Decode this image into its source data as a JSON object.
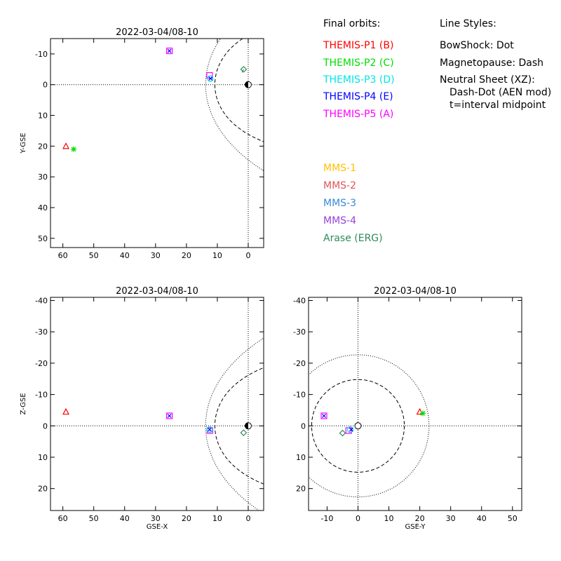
{
  "legend": {
    "final_orbits_header": "Final orbits:",
    "line_styles_header": "Line Styles:",
    "missions": [
      {
        "label": "THEMIS-P1 (B)",
        "color": "#ff0000"
      },
      {
        "label": "THEMIS-P2 (C)",
        "color": "#00dd00"
      },
      {
        "label": "THEMIS-P3 (D)",
        "color": "#00e5e5"
      },
      {
        "label": "THEMIS-P4 (E)",
        "color": "#0000ff"
      },
      {
        "label": "THEMIS-P5 (A)",
        "color": "#ff00ff"
      },
      {
        "label": "MMS-1",
        "color": "#ffc000"
      },
      {
        "label": "MMS-2",
        "color": "#e05555"
      },
      {
        "label": "MMS-3",
        "color": "#3a8ad8"
      },
      {
        "label": "MMS-4",
        "color": "#9a40e0"
      },
      {
        "label": "Arase (ERG)",
        "color": "#2e8b57"
      }
    ],
    "styles": [
      "BowShock: Dot",
      "Magnetopause: Dash",
      "Neutral Sheet (XZ):",
      "Dash-Dot (AEN mod)",
      "t=interval midpoint"
    ]
  },
  "chart_data": [
    {
      "id": "xy",
      "type": "scatter",
      "title": "2022-03-04/08-10",
      "xlabel": "",
      "ylabel": "Y-GSE",
      "xlim": [
        64,
        -5
      ],
      "ylim": [
        -15,
        53
      ],
      "xticks": [
        60,
        50,
        40,
        30,
        20,
        10,
        0
      ],
      "yticks": [
        -10,
        0,
        10,
        20,
        30,
        40,
        50
      ],
      "markers": [
        {
          "series": "THEMIS-P1 (B)",
          "x": 59,
          "y": 20
        },
        {
          "series": "THEMIS-P2 (C)",
          "x": 56.5,
          "y": 21
        },
        {
          "series": "THEMIS-P5 (A)",
          "x": 25.5,
          "y": -11
        },
        {
          "series": "THEMIS-P4 (E)",
          "x": 25.5,
          "y": -11
        },
        {
          "series": "THEMIS-P5 (A)",
          "x": 12.5,
          "y": -3
        },
        {
          "series": "THEMIS-P3 (D)",
          "x": 12.3,
          "y": -2
        },
        {
          "series": "THEMIS-P4 (E)",
          "x": 12.2,
          "y": -2
        },
        {
          "series": "Arase (ERG)",
          "x": 1.5,
          "y": -5
        }
      ],
      "tracks": [
        {
          "series": "Arase (ERG)",
          "points": [
            [
              2,
              -4
            ],
            [
              1.5,
              -5
            ]
          ]
        }
      ]
    },
    {
      "id": "xz",
      "type": "scatter",
      "title": "2022-03-04/08-10",
      "xlabel": "GSE-X",
      "ylabel": "Z-GSE",
      "xlim": [
        64,
        -5
      ],
      "ylim": [
        -41,
        27
      ],
      "xticks": [
        60,
        50,
        40,
        30,
        20,
        10,
        0
      ],
      "yticks": [
        -40,
        -30,
        -20,
        -10,
        0,
        10,
        20
      ],
      "markers": [
        {
          "series": "THEMIS-P1 (B)",
          "x": 59,
          "y": -4.5
        },
        {
          "series": "THEMIS-P5 (A)",
          "x": 25.5,
          "y": -3.2
        },
        {
          "series": "THEMIS-P4 (E)",
          "x": 25.5,
          "y": -3.2
        },
        {
          "series": "THEMIS-P5 (A)",
          "x": 12.4,
          "y": 1.5
        },
        {
          "series": "THEMIS-P3 (D)",
          "x": 12.5,
          "y": 1.2
        },
        {
          "series": "THEMIS-P4 (E)",
          "x": 12.5,
          "y": 1.2
        },
        {
          "series": "Arase (ERG)",
          "x": 1.5,
          "y": 2.2
        }
      ],
      "tracks": []
    },
    {
      "id": "yz",
      "type": "scatter",
      "title": "2022-03-04/08-10",
      "xlabel": "GSE-Y",
      "ylabel": "",
      "xlim": [
        -16,
        53
      ],
      "ylim": [
        -41,
        27
      ],
      "xticks": [
        -10,
        0,
        10,
        20,
        30,
        40,
        50
      ],
      "yticks": [
        -40,
        -30,
        -20,
        -10,
        0,
        10,
        20
      ],
      "markers": [
        {
          "series": "THEMIS-P1 (B)",
          "x": 20,
          "y": -4.5
        },
        {
          "series": "THEMIS-P2 (C)",
          "x": 21,
          "y": -4
        },
        {
          "series": "THEMIS-P5 (A)",
          "x": -11,
          "y": -3.2
        },
        {
          "series": "THEMIS-P4 (E)",
          "x": -11,
          "y": -3.2
        },
        {
          "series": "Arase (ERG)",
          "x": -5,
          "y": 2.3
        },
        {
          "series": "THEMIS-P5 (A)",
          "x": -3,
          "y": 1.5
        },
        {
          "series": "THEMIS-P3 (D)",
          "x": -2.5,
          "y": 1.2
        },
        {
          "series": "THEMIS-P4 (E)",
          "x": -2.2,
          "y": 1.2
        }
      ],
      "tracks": []
    }
  ]
}
